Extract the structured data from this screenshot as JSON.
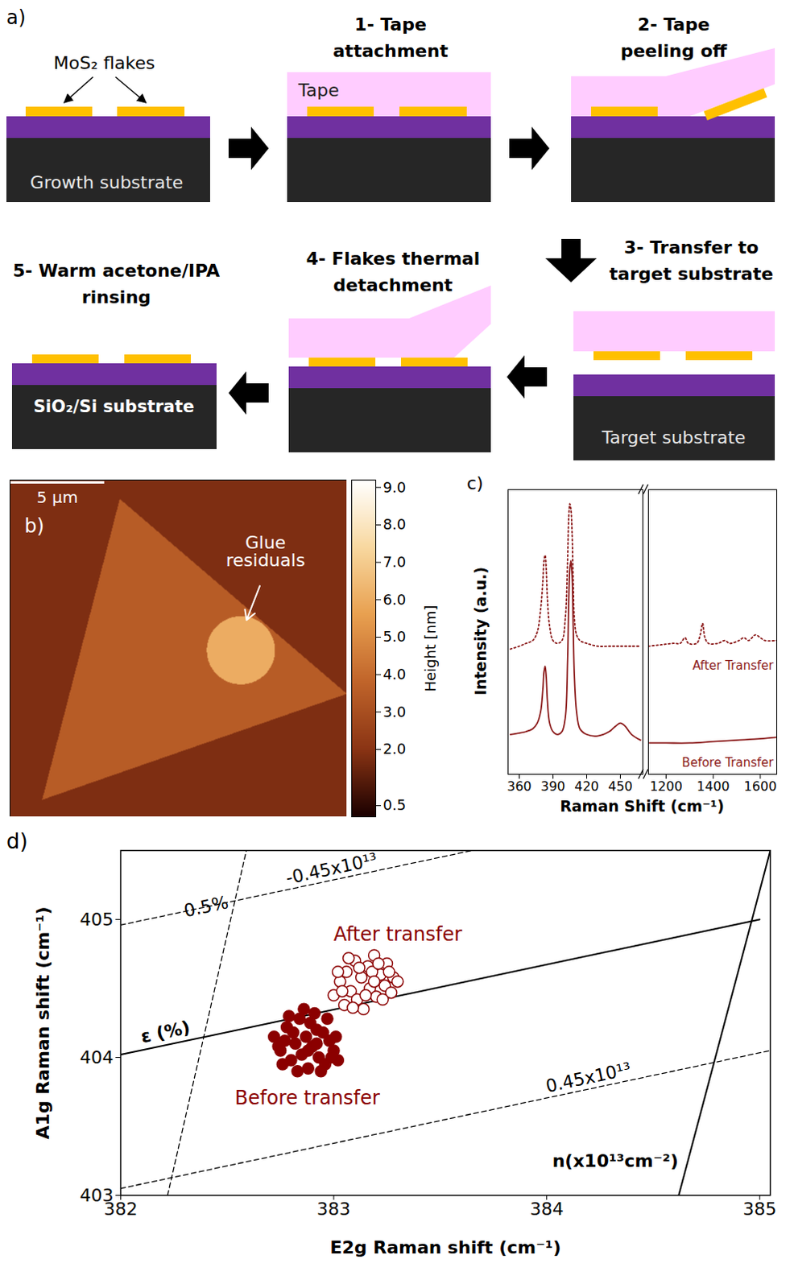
{
  "diagram": {
    "label": "a)",
    "flakes_label": "MoS₂ flakes",
    "tape_label": "Tape",
    "start_label": "Growth substrate",
    "target_label": "Target substrate",
    "final_label": "SiO₂/Si substrate",
    "steps": [
      "1- Tape attachment",
      "2- Tape peeling off",
      "3- Transfer to target substrate",
      "4- Flakes thermal detachment",
      "5- Warm acetone/IPA rinsing"
    ]
  },
  "chart_data": [
    {
      "type": "image",
      "panel": "b)",
      "tick_labels": false,
      "xlim": [
        0,
        17.8
      ],
      "ylim": [
        0,
        17.8
      ],
      "scale_bar": {
        "value": 5,
        "label": "5 µm"
      },
      "background_height": 1.8,
      "flake": {
        "vertices": [
          [
            5.8,
            1.0
          ],
          [
            17.8,
            11.3
          ],
          [
            1.7,
            16.9
          ]
        ],
        "height": 3.5
      },
      "residue": {
        "label": "Glue residuals",
        "center": [
          12.2,
          9.0
        ],
        "radius": 1.8,
        "height": 6.0
      },
      "colorbar": {
        "label": "Height [nm]",
        "range": [
          0.2,
          9.2
        ],
        "ticks": [
          {
            "value": 9,
            "label": "9.0"
          },
          {
            "value": 8,
            "label": "8.0"
          },
          {
            "value": 7,
            "label": "7.0"
          },
          {
            "value": 6,
            "label": "6.0"
          },
          {
            "value": 5,
            "label": "5.0"
          },
          {
            "value": 4,
            "label": "4.0"
          },
          {
            "value": 3,
            "label": "3.0"
          },
          {
            "value": 2,
            "label": "2.0"
          },
          0.5
        ]
      }
    },
    {
      "type": "line",
      "panel": "c)",
      "xlabel": "Raman Shift (cm⁻¹)",
      "ylabel": "Intensity (a.u.)",
      "tick_labels": "x",
      "ylim": [
        0,
        100
      ],
      "axes": [
        {
          "xlim": [
            350,
            470
          ],
          "xticks": [
            360,
            390,
            420,
            450
          ]
        },
        {
          "xlim": [
            1125,
            1670
          ],
          "xticks": [
            1200,
            1400,
            1600
          ]
        }
      ],
      "series": [
        {
          "name": "After Transfer",
          "color": "#8b1a1a",
          "line_style": "dotted",
          "x": [
            352,
            360,
            366,
            372,
            376,
            379,
            381,
            382,
            383,
            384,
            385,
            387,
            390,
            394,
            398,
            401,
            403,
            404,
            405,
            406,
            407,
            408,
            409,
            411,
            414,
            420,
            430,
            440,
            450,
            460,
            468,
            1125,
            1180,
            1230,
            1260,
            1280,
            1295,
            1330,
            1345,
            1355,
            1365,
            1380,
            1420,
            1450,
            1470,
            1510,
            1530,
            1550,
            1580,
            1600,
            1620,
            1670
          ],
          "values": [
            44,
            45,
            46,
            47,
            50,
            58,
            68,
            75,
            77,
            72,
            62,
            52,
            47,
            46,
            47,
            55,
            75,
            90,
            95,
            93,
            85,
            68,
            55,
            49,
            47,
            46,
            45,
            45,
            45,
            45,
            45,
            45,
            45.5,
            46,
            46,
            48,
            46,
            46,
            49,
            53,
            48,
            46,
            46,
            47,
            46,
            47,
            48,
            47,
            49,
            48,
            47,
            47
          ]
        },
        {
          "name": "Before Transfer",
          "color": "#8b1a1a",
          "line_style": "solid",
          "x": [
            352,
            360,
            366,
            372,
            376,
            379,
            381,
            382,
            383,
            384,
            385,
            387,
            390,
            394,
            398,
            401,
            403,
            404,
            405,
            406,
            407,
            408,
            409,
            411,
            414,
            420,
            430,
            440,
            446,
            450,
            454,
            460,
            468,
            1125,
            1200,
            1300,
            1400,
            1500,
            1600,
            1670
          ],
          "values": [
            14,
            14.5,
            15,
            16,
            18,
            22,
            30,
            36,
            38,
            34,
            26,
            18,
            15,
            14,
            15,
            20,
            40,
            60,
            72,
            75,
            70,
            52,
            35,
            22,
            16,
            14,
            13.5,
            15,
            17,
            18,
            17,
            14,
            12,
            11,
            11,
            11,
            11.5,
            12,
            12.5,
            13
          ]
        }
      ]
    },
    {
      "type": "scatter",
      "panel": "d)",
      "xlabel": "E2g Raman shift (cm⁻¹)",
      "ylabel": "A1g Raman shift (cm⁻¹)",
      "xlim": [
        382,
        385.05
      ],
      "ylim": [
        403,
        405.5
      ],
      "xticks": [
        382,
        383,
        384,
        385
      ],
      "yticks": [
        403,
        404,
        405
      ],
      "lines": [
        {
          "label": "ε (%)",
          "line_style": "solid",
          "x": [
            382,
            385
          ],
          "y": [
            404.02,
            405.0
          ]
        },
        {
          "label": "n(x10¹³cm⁻²)",
          "line_style": "solid",
          "x": [
            384.62,
            385.05
          ],
          "y": [
            403,
            405.5
          ]
        },
        {
          "label": "0.5%",
          "line_style": "dashed",
          "x": [
            382.22,
            382.59
          ],
          "y": [
            403,
            405.5
          ]
        },
        {
          "label": "-0.45x10¹³",
          "line_style": "dashed",
          "x": [
            382,
            383.65
          ],
          "y": [
            404.96,
            405.5
          ]
        },
        {
          "label": "0.45x10¹³",
          "line_style": "dashed",
          "x": [
            382,
            385.05
          ],
          "y": [
            403.05,
            404.05
          ]
        }
      ],
      "series": [
        {
          "name": "After transfer",
          "color": "#8b0000",
          "marker": "circle-open",
          "x": [
            383.0,
            383.03,
            383.05,
            383.06,
            383.08,
            383.1,
            383.11,
            383.13,
            383.14,
            383.16,
            383.17,
            383.19,
            383.2,
            383.22,
            383.24,
            383.25,
            383.27,
            383.28,
            383.3,
            383.02,
            383.07,
            383.09,
            383.12,
            383.15,
            383.18,
            383.21,
            383.23,
            383.26,
            383.04,
            383.19
          ],
          "values": [
            404.45,
            404.55,
            404.38,
            404.62,
            404.48,
            404.7,
            404.42,
            404.58,
            404.35,
            404.66,
            404.5,
            404.74,
            404.44,
            404.6,
            404.52,
            404.68,
            404.47,
            404.58,
            404.55,
            404.62,
            404.72,
            404.36,
            404.65,
            404.45,
            404.62,
            404.68,
            404.42,
            404.62,
            404.48,
            404.55
          ]
        },
        {
          "name": "Before transfer",
          "color": "#8b0000",
          "marker": "circle",
          "x": [
            382.72,
            382.75,
            382.78,
            382.8,
            382.82,
            382.84,
            382.85,
            382.87,
            382.88,
            382.9,
            382.91,
            382.93,
            382.95,
            382.96,
            382.98,
            383.0,
            383.02,
            382.76,
            382.79,
            382.83,
            382.86,
            382.89,
            382.92,
            382.94,
            382.97,
            382.99,
            382.81,
            382.74,
            382.88,
            383.01,
            382.77,
            382.92
          ],
          "values": [
            404.15,
            404.05,
            404.22,
            403.98,
            404.1,
            404.28,
            404.02,
            404.15,
            403.92,
            404.08,
            404.32,
            404.0,
            404.18,
            403.95,
            404.12,
            404.05,
            403.98,
            403.95,
            404.3,
            403.9,
            404.35,
            404.25,
            404.2,
            403.9,
            404.28,
            404.0,
            404.18,
            404.08,
            404.05,
            404.15,
            404.12,
            404.1
          ]
        }
      ]
    }
  ]
}
